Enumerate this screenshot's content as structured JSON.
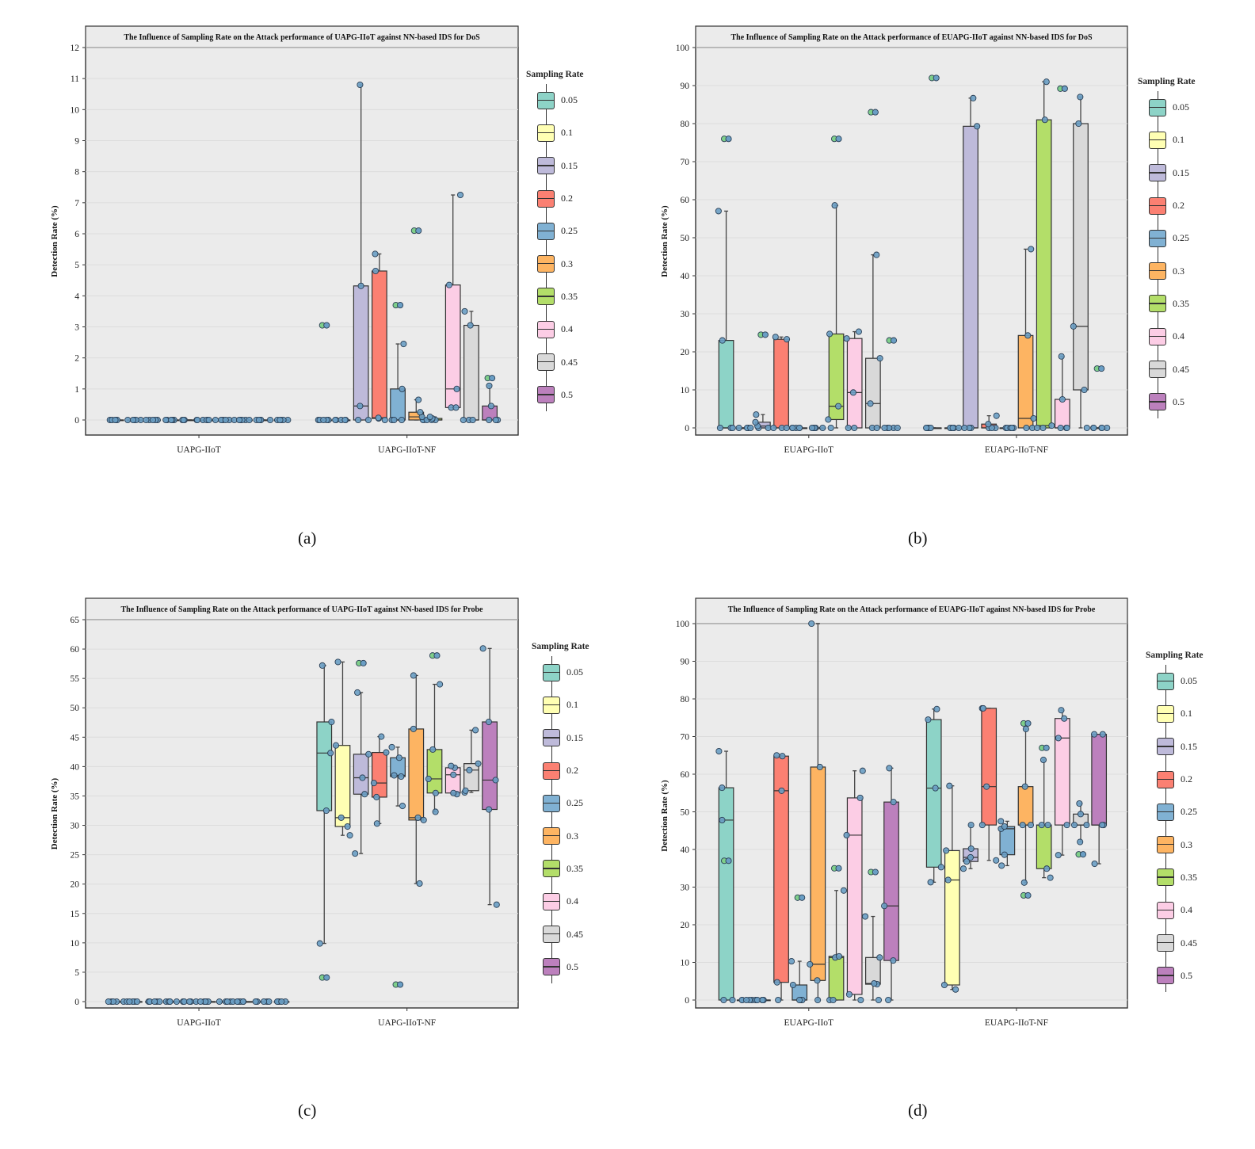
{
  "palette": [
    "#8dd3c7",
    "#ffffb3",
    "#bebada",
    "#fb8072",
    "#80b1d3",
    "#fdb462",
    "#b3de69",
    "#fccde5",
    "#d9d9d9",
    "#bc80bd"
  ],
  "point_color": "#6a9ec4",
  "outlier_color": "#7fcf8a",
  "legend": {
    "title": "Sampling Rate",
    "items": [
      "0.05",
      "0.1",
      "0.15",
      "0.2",
      "0.25",
      "0.3",
      "0.35",
      "0.4",
      "0.45",
      "0.5"
    ]
  },
  "chart_data": [
    {
      "caption": "(a)",
      "type": "box",
      "title": "The Influence of Sampling Rate on the Attack performance of UAPG-IIoT against NN-based IDS for DoS",
      "ylabel": "Detection Rate (%)",
      "ylim": [
        0,
        12
      ],
      "yticks": [
        0,
        1,
        2,
        3,
        4,
        5,
        6,
        7,
        8,
        9,
        10,
        11,
        12
      ],
      "grid": true,
      "legend_placement": "right",
      "categories": [
        "UAPG-IIoT",
        "UAPG-IIoT-NF"
      ],
      "stats_order": [
        "whisker_low",
        "q1",
        "median",
        "q3",
        "whisker_high"
      ],
      "groups": [
        {
          "boxes": [
            [
              0,
              0,
              0,
              0,
              0
            ],
            [
              0,
              0,
              0,
              0,
              0
            ],
            [
              0,
              0,
              0,
              0,
              0
            ],
            [
              0,
              0,
              0,
              0,
              0
            ],
            [
              0,
              0,
              0,
              0,
              0
            ],
            [
              0,
              0,
              0,
              0,
              0
            ],
            [
              0,
              0,
              0,
              0,
              0
            ],
            [
              0,
              0,
              0,
              0,
              0
            ],
            [
              0,
              0,
              0,
              0,
              0
            ],
            [
              0,
              0,
              0,
              0,
              0
            ]
          ],
          "outliers": [
            [],
            [],
            [],
            [],
            [],
            [],
            [],
            [],
            [],
            []
          ]
        },
        {
          "boxes": [
            [
              0,
              0,
              0,
              0,
              0
            ],
            [
              0,
              0,
              0,
              0,
              0
            ],
            [
              0,
              0,
              0.45,
              4.32,
              10.8
            ],
            [
              0,
              0.05,
              0.07,
              4.8,
              5.35
            ],
            [
              0,
              0,
              0,
              1.0,
              2.45
            ],
            [
              0,
              0,
              0.1,
              0.25,
              0.65
            ],
            [
              0,
              0,
              0,
              0.05,
              0.1
            ],
            [
              0.4,
              0.4,
              1.0,
              4.35,
              7.25
            ],
            [
              0,
              0,
              0,
              3.05,
              3.5
            ],
            [
              0,
              0,
              0,
              0.45,
              1.1
            ]
          ],
          "outliers": [
            [
              3.05
            ],
            [],
            [],
            [],
            [
              3.7
            ],
            [
              6.1
            ],
            [],
            [],
            [],
            [
              1.35
            ]
          ]
        }
      ]
    },
    {
      "caption": "(b)",
      "type": "box",
      "title": "The Influence of Sampling Rate on the Attack performance of EUAPG-IIoT against NN-based IDS for DoS",
      "ylabel": "Detection Rate (%)",
      "ylim": [
        0,
        100
      ],
      "yticks": [
        0,
        10,
        20,
        30,
        40,
        50,
        60,
        70,
        80,
        90,
        100
      ],
      "grid": true,
      "legend_placement": "right",
      "categories": [
        "EUAPG-IIoT",
        "EUAPG-IIoT-NF"
      ],
      "stats_order": [
        "whisker_low",
        "q1",
        "median",
        "q3",
        "whisker_high"
      ],
      "groups": [
        {
          "boxes": [
            [
              0,
              0,
              0,
              23,
              57
            ],
            [
              0,
              0,
              0,
              0,
              0
            ],
            [
              0,
              0,
              0.5,
              1.5,
              3.5
            ],
            [
              0,
              0,
              0,
              23.3,
              23.9
            ],
            [
              0,
              0,
              0,
              0,
              0
            ],
            [
              0,
              0,
              0,
              0,
              0
            ],
            [
              0,
              2.2,
              5.7,
              24.7,
              58.5
            ],
            [
              0,
              0,
              9.3,
              23.5,
              25.3
            ],
            [
              0,
              0,
              6.4,
              18.3,
              45.5
            ],
            [
              0,
              0,
              0,
              0,
              0
            ]
          ],
          "outliers": [
            [
              76
            ],
            [],
            [
              24.5
            ],
            [],
            [],
            [],
            [
              76
            ],
            [],
            [
              83
            ],
            [
              23
            ]
          ]
        },
        {
          "boxes": [
            [
              0,
              0,
              0,
              0,
              0
            ],
            [
              0,
              0,
              0,
              0,
              0
            ],
            [
              0,
              0,
              0,
              79.3,
              86.7
            ],
            [
              0,
              0,
              0,
              1,
              3.2
            ],
            [
              0,
              0,
              0,
              0,
              0
            ],
            [
              0,
              0,
              2.5,
              24.3,
              47
            ],
            [
              0,
              0,
              0.6,
              81,
              91
            ],
            [
              0,
              0,
              0,
              7.5,
              18.8
            ],
            [
              0,
              10,
              26.7,
              80,
              87
            ],
            [
              0,
              0,
              0,
              0,
              0
            ]
          ],
          "outliers": [
            [
              92
            ],
            [],
            [],
            [],
            [],
            [],
            [],
            [
              89.2
            ],
            [],
            [
              15.6
            ]
          ]
        }
      ]
    },
    {
      "caption": "(c)",
      "type": "box",
      "title": "The Influence of Sampling Rate on the Attack performance of UAPG-IIoT against NN-based IDS for Probe",
      "ylabel": "Detection Rate (%)",
      "ylim": [
        0,
        65
      ],
      "yticks": [
        0,
        5,
        10,
        15,
        20,
        25,
        30,
        35,
        40,
        45,
        50,
        55,
        60,
        65
      ],
      "grid": true,
      "legend_placement": "right",
      "categories": [
        "UAPG-IIoT",
        "UAPG-IIoT-NF"
      ],
      "stats_order": [
        "whisker_low",
        "q1",
        "median",
        "q3",
        "whisker_high"
      ],
      "groups": [
        {
          "boxes": [
            [
              0,
              0,
              0,
              0,
              0
            ],
            [
              0,
              0,
              0,
              0,
              0
            ],
            [
              0,
              0,
              0,
              0,
              0
            ],
            [
              0,
              0,
              0,
              0,
              0
            ],
            [
              0,
              0,
              0,
              0,
              0
            ],
            [
              0,
              0,
              0,
              0,
              0
            ],
            [
              0,
              0,
              0,
              0,
              0
            ],
            [
              0,
              0,
              0,
              0,
              0
            ],
            [
              0,
              0,
              0,
              0,
              0
            ],
            [
              0,
              0,
              0,
              0,
              0
            ]
          ],
          "outliers": [
            [],
            [],
            [],
            [],
            [],
            [],
            [],
            [],
            [],
            []
          ]
        },
        {
          "boxes": [
            [
              9.9,
              32.5,
              42.3,
              47.6,
              57.2
            ],
            [
              28.3,
              29.8,
              31.3,
              43.6,
              57.8
            ],
            [
              25.2,
              35.3,
              38.1,
              42.1,
              52.6
            ],
            [
              30.3,
              34.8,
              37.2,
              42.4,
              45.1
            ],
            [
              33.3,
              38.3,
              38.5,
              41.5,
              43.3
            ],
            [
              20.1,
              30.9,
              31.3,
              46.4,
              55.5
            ],
            [
              32.3,
              35.5,
              37.9,
              42.9,
              54
            ],
            [
              35.3,
              35.5,
              38.6,
              39.8,
              40.1
            ],
            [
              35.6,
              35.9,
              39.4,
              40.5,
              46.2
            ],
            [
              16.5,
              32.7,
              37.7,
              47.6,
              60.1
            ]
          ],
          "outliers": [
            [
              4.1
            ],
            [],
            [
              57.6
            ],
            [],
            [
              2.9
            ],
            [],
            [
              58.9
            ],
            [],
            [],
            []
          ]
        }
      ]
    },
    {
      "caption": "(d)",
      "type": "box",
      "title": "The Influence of Sampling Rate on the Attack performance of EUAPG-IIoT against NN-based IDS for Probe",
      "ylabel": "Detection Rate (%)",
      "ylim": [
        0,
        100
      ],
      "yticks": [
        0,
        10,
        20,
        30,
        40,
        50,
        60,
        70,
        80,
        90,
        100
      ],
      "grid": true,
      "legend_placement": "right",
      "categories": [
        "EUAPG-IIoT",
        "EUAPG-IIoT-NF"
      ],
      "stats_order": [
        "whisker_low",
        "q1",
        "median",
        "q3",
        "whisker_high"
      ],
      "groups": [
        {
          "boxes": [
            [
              0,
              0,
              47.8,
              56.4,
              66.1
            ],
            [
              0,
              0,
              0,
              0,
              0
            ],
            [
              0,
              0,
              0,
              0,
              0
            ],
            [
              0,
              4.7,
              55.6,
              64.8,
              65
            ],
            [
              0,
              0,
              0,
              4,
              10.3
            ],
            [
              0,
              5.2,
              9.5,
              61.9,
              100
            ],
            [
              0,
              0,
              11.3,
              11.6,
              29.1
            ],
            [
              0,
              1.5,
              43.8,
              53.7,
              60.9
            ],
            [
              0,
              4.2,
              4.4,
              11.3,
              22.2
            ],
            [
              0,
              10.5,
              25,
              52.6,
              61.6
            ]
          ],
          "outliers": [
            [
              37
            ],
            [],
            [],
            [],
            [
              27.2
            ],
            [],
            [
              35
            ],
            [],
            [
              34
            ],
            []
          ]
        },
        {
          "boxes": [
            [
              31.3,
              35.3,
              56.3,
              74.5,
              77.3
            ],
            [
              2.8,
              4,
              31.9,
              39.7,
              56.9
            ],
            [
              34.9,
              36.8,
              37.9,
              40.2,
              46.5
            ],
            [
              37.1,
              46.5,
              56.7,
              77.5,
              77.5
            ],
            [
              35.7,
              38.6,
              45.5,
              46.1,
              47.5
            ],
            [
              31.2,
              46.5,
              46.5,
              56.7,
              72
            ],
            [
              32.5,
              34.9,
              46.5,
              46.5,
              63.8
            ],
            [
              38.5,
              46.5,
              69.6,
              74.8,
              77
            ],
            [
              42,
              46.5,
              46.5,
              49.4,
              52.2
            ],
            [
              36.2,
              46.5,
              46.5,
              70.6,
              70.6
            ]
          ],
          "outliers": [
            [],
            [],
            [],
            [],
            [],
            [
              27.8,
              73.5
            ],
            [
              67
            ],
            [],
            [
              38.7
            ],
            []
          ]
        }
      ]
    }
  ]
}
